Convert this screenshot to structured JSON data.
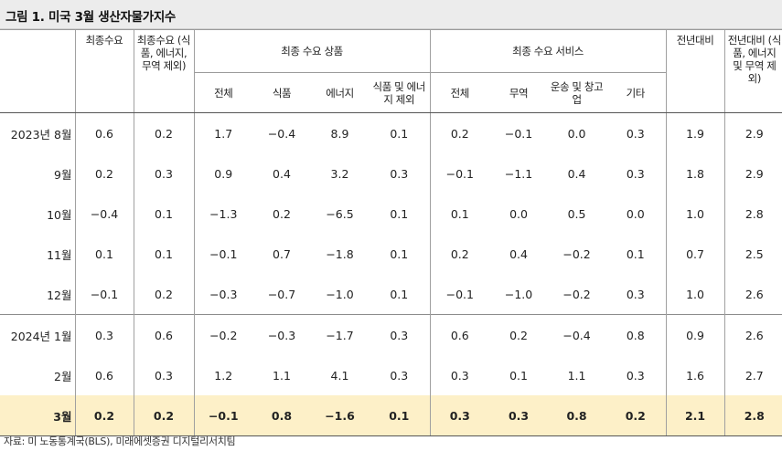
{
  "title": "그림 1. 미국 3월 생산자물가지수",
  "headers": {
    "final_demand": "최종수요",
    "final_demand_core": "최종수요 (식품, 에너지, 무역 제외)",
    "goods_group": "최종 수요 상품",
    "services_group": "최종 수요 서비스",
    "yoy": "전년대비",
    "yoy_core": "전년대비 (식품, 에너지 및 무역 제외)",
    "goods_cols": [
      "전체",
      "식품",
      "에너지",
      "식품 및 에너지 제외"
    ],
    "services_cols": [
      "전체",
      "무역",
      "운송 및 창고업",
      "기타"
    ]
  },
  "rows": [
    {
      "label": "2023년 8월",
      "values": [
        "0.6",
        "0.2",
        "1.7",
        "−0.4",
        "8.9",
        "0.1",
        "0.2",
        "−0.1",
        "0.0",
        "0.3",
        "1.9",
        "2.9"
      ]
    },
    {
      "label": "9월",
      "values": [
        "0.2",
        "0.3",
        "0.9",
        "0.4",
        "3.2",
        "0.3",
        "−0.1",
        "−1.1",
        "0.4",
        "0.3",
        "1.8",
        "2.9"
      ]
    },
    {
      "label": "10월",
      "values": [
        "−0.4",
        "0.1",
        "−1.3",
        "0.2",
        "−6.5",
        "0.1",
        "0.1",
        "0.0",
        "0.5",
        "0.0",
        "1.0",
        "2.8"
      ]
    },
    {
      "label": "11월",
      "values": [
        "0.1",
        "0.1",
        "−0.1",
        "0.7",
        "−1.8",
        "0.1",
        "0.2",
        "0.4",
        "−0.2",
        "0.1",
        "0.7",
        "2.5"
      ]
    },
    {
      "label": "12월",
      "values": [
        "−0.1",
        "0.2",
        "−0.3",
        "−0.7",
        "−1.0",
        "0.1",
        "−0.1",
        "−1.0",
        "−0.2",
        "0.3",
        "1.0",
        "2.6"
      ]
    },
    {
      "label": "2024년 1월",
      "values": [
        "0.3",
        "0.6",
        "−0.2",
        "−0.3",
        "−1.7",
        "0.3",
        "0.6",
        "0.2",
        "−0.4",
        "0.8",
        "0.9",
        "2.6"
      ]
    },
    {
      "label": "2월",
      "values": [
        "0.6",
        "0.3",
        "1.2",
        "1.1",
        "4.1",
        "0.3",
        "0.3",
        "0.1",
        "1.1",
        "0.3",
        "1.6",
        "2.7"
      ]
    },
    {
      "label": "3월",
      "values": [
        "0.2",
        "0.2",
        "−0.1",
        "0.8",
        "−1.6",
        "0.1",
        "0.3",
        "0.3",
        "0.8",
        "0.2",
        "2.1",
        "2.8"
      ]
    }
  ],
  "source": "자료: 미 노동통계국(BLS), 미래에셋증권 디지털리서치팀",
  "highlight_color": "#fdf0c8"
}
